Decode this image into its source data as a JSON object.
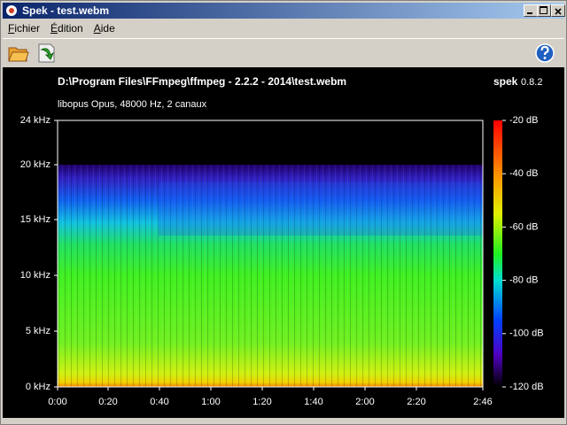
{
  "window": {
    "title": "Spek - test.webm"
  },
  "menu": [
    "Fichier",
    "Édition",
    "Aide"
  ],
  "header": {
    "path": "D:\\Program Files\\FFmpeg\\ffmpeg - 2.2.2 - 2014\\test.webm",
    "app": "spek",
    "version": "0.8.2",
    "info": "libopus Opus, 48000 Hz, 2 canaux"
  },
  "frequency_labels": [
    "0 kHz",
    "5 kHz",
    "10 kHz",
    "15 kHz",
    "20 kHz",
    "24 kHz"
  ],
  "time_labels": [
    "0:00",
    "0:20",
    "0:40",
    "1:00",
    "1:20",
    "1:40",
    "2:00",
    "2:20",
    "2:46"
  ],
  "level_labels": [
    "-20 dB",
    "-40 dB",
    "-60 dB",
    "-80 dB",
    "-100 dB",
    "-120 dB"
  ]
}
